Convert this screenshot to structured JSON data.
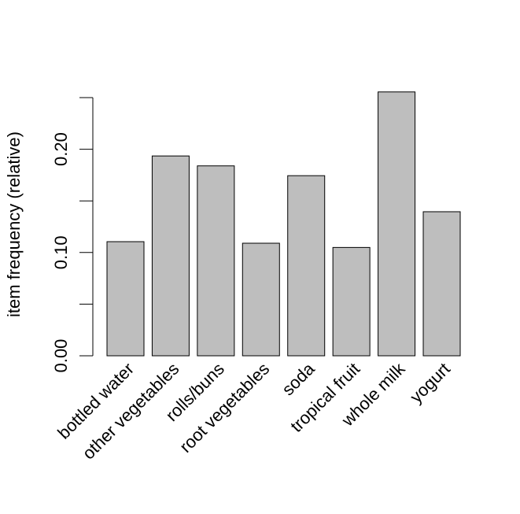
{
  "chart_data": {
    "type": "bar",
    "title": "",
    "xlabel": "",
    "ylabel": "item frequency (relative)",
    "categories": [
      "bottled water",
      "other vegetables",
      "rolls/buns",
      "root vegetables",
      "soda",
      "tropical fruit",
      "whole milk",
      "yogurt"
    ],
    "values": [
      0.1105,
      0.1935,
      0.1839,
      0.109,
      0.1744,
      0.1049,
      0.2555,
      0.1395
    ],
    "ylim": [
      0,
      0.25
    ],
    "yticks": [
      0.0,
      0.05,
      0.1,
      0.15,
      0.2,
      0.25
    ],
    "ytick_labels": [
      "0.00",
      "",
      "0.10",
      "",
      "0.20",
      ""
    ],
    "grid": false,
    "legend": "none",
    "bar_color": "#bebebe",
    "edge_color": "#000000"
  }
}
